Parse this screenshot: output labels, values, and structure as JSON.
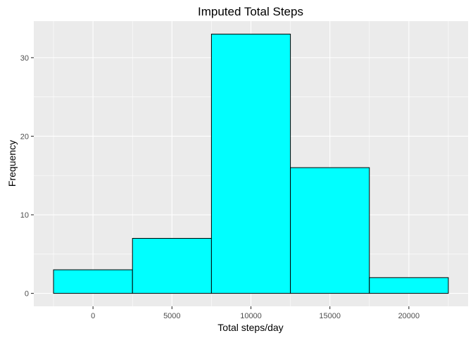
{
  "chart_data": {
    "type": "bar",
    "title": "Imputed Total Steps",
    "xlabel": "Total steps/day",
    "ylabel": "Frequency",
    "bins": [
      {
        "x0": -2500,
        "x1": 2500,
        "count": 3
      },
      {
        "x0": 2500,
        "x1": 7500,
        "count": 7
      },
      {
        "x0": 7500,
        "x1": 12500,
        "count": 33
      },
      {
        "x0": 12500,
        "x1": 17500,
        "count": 16
      },
      {
        "x0": 17500,
        "x1": 22500,
        "count": 2
      }
    ],
    "x_ticks": [
      0,
      5000,
      10000,
      15000,
      20000
    ],
    "y_ticks": [
      0,
      10,
      20,
      30
    ],
    "xlim": [
      -3750,
      23750
    ],
    "ylim": [
      -1.65,
      34.65
    ],
    "grid": true,
    "colors": {
      "bar_fill": "#00FFFF",
      "bar_stroke": "#000000",
      "panel_background": "#EBEBEB",
      "grid": "#FFFFFF"
    }
  }
}
